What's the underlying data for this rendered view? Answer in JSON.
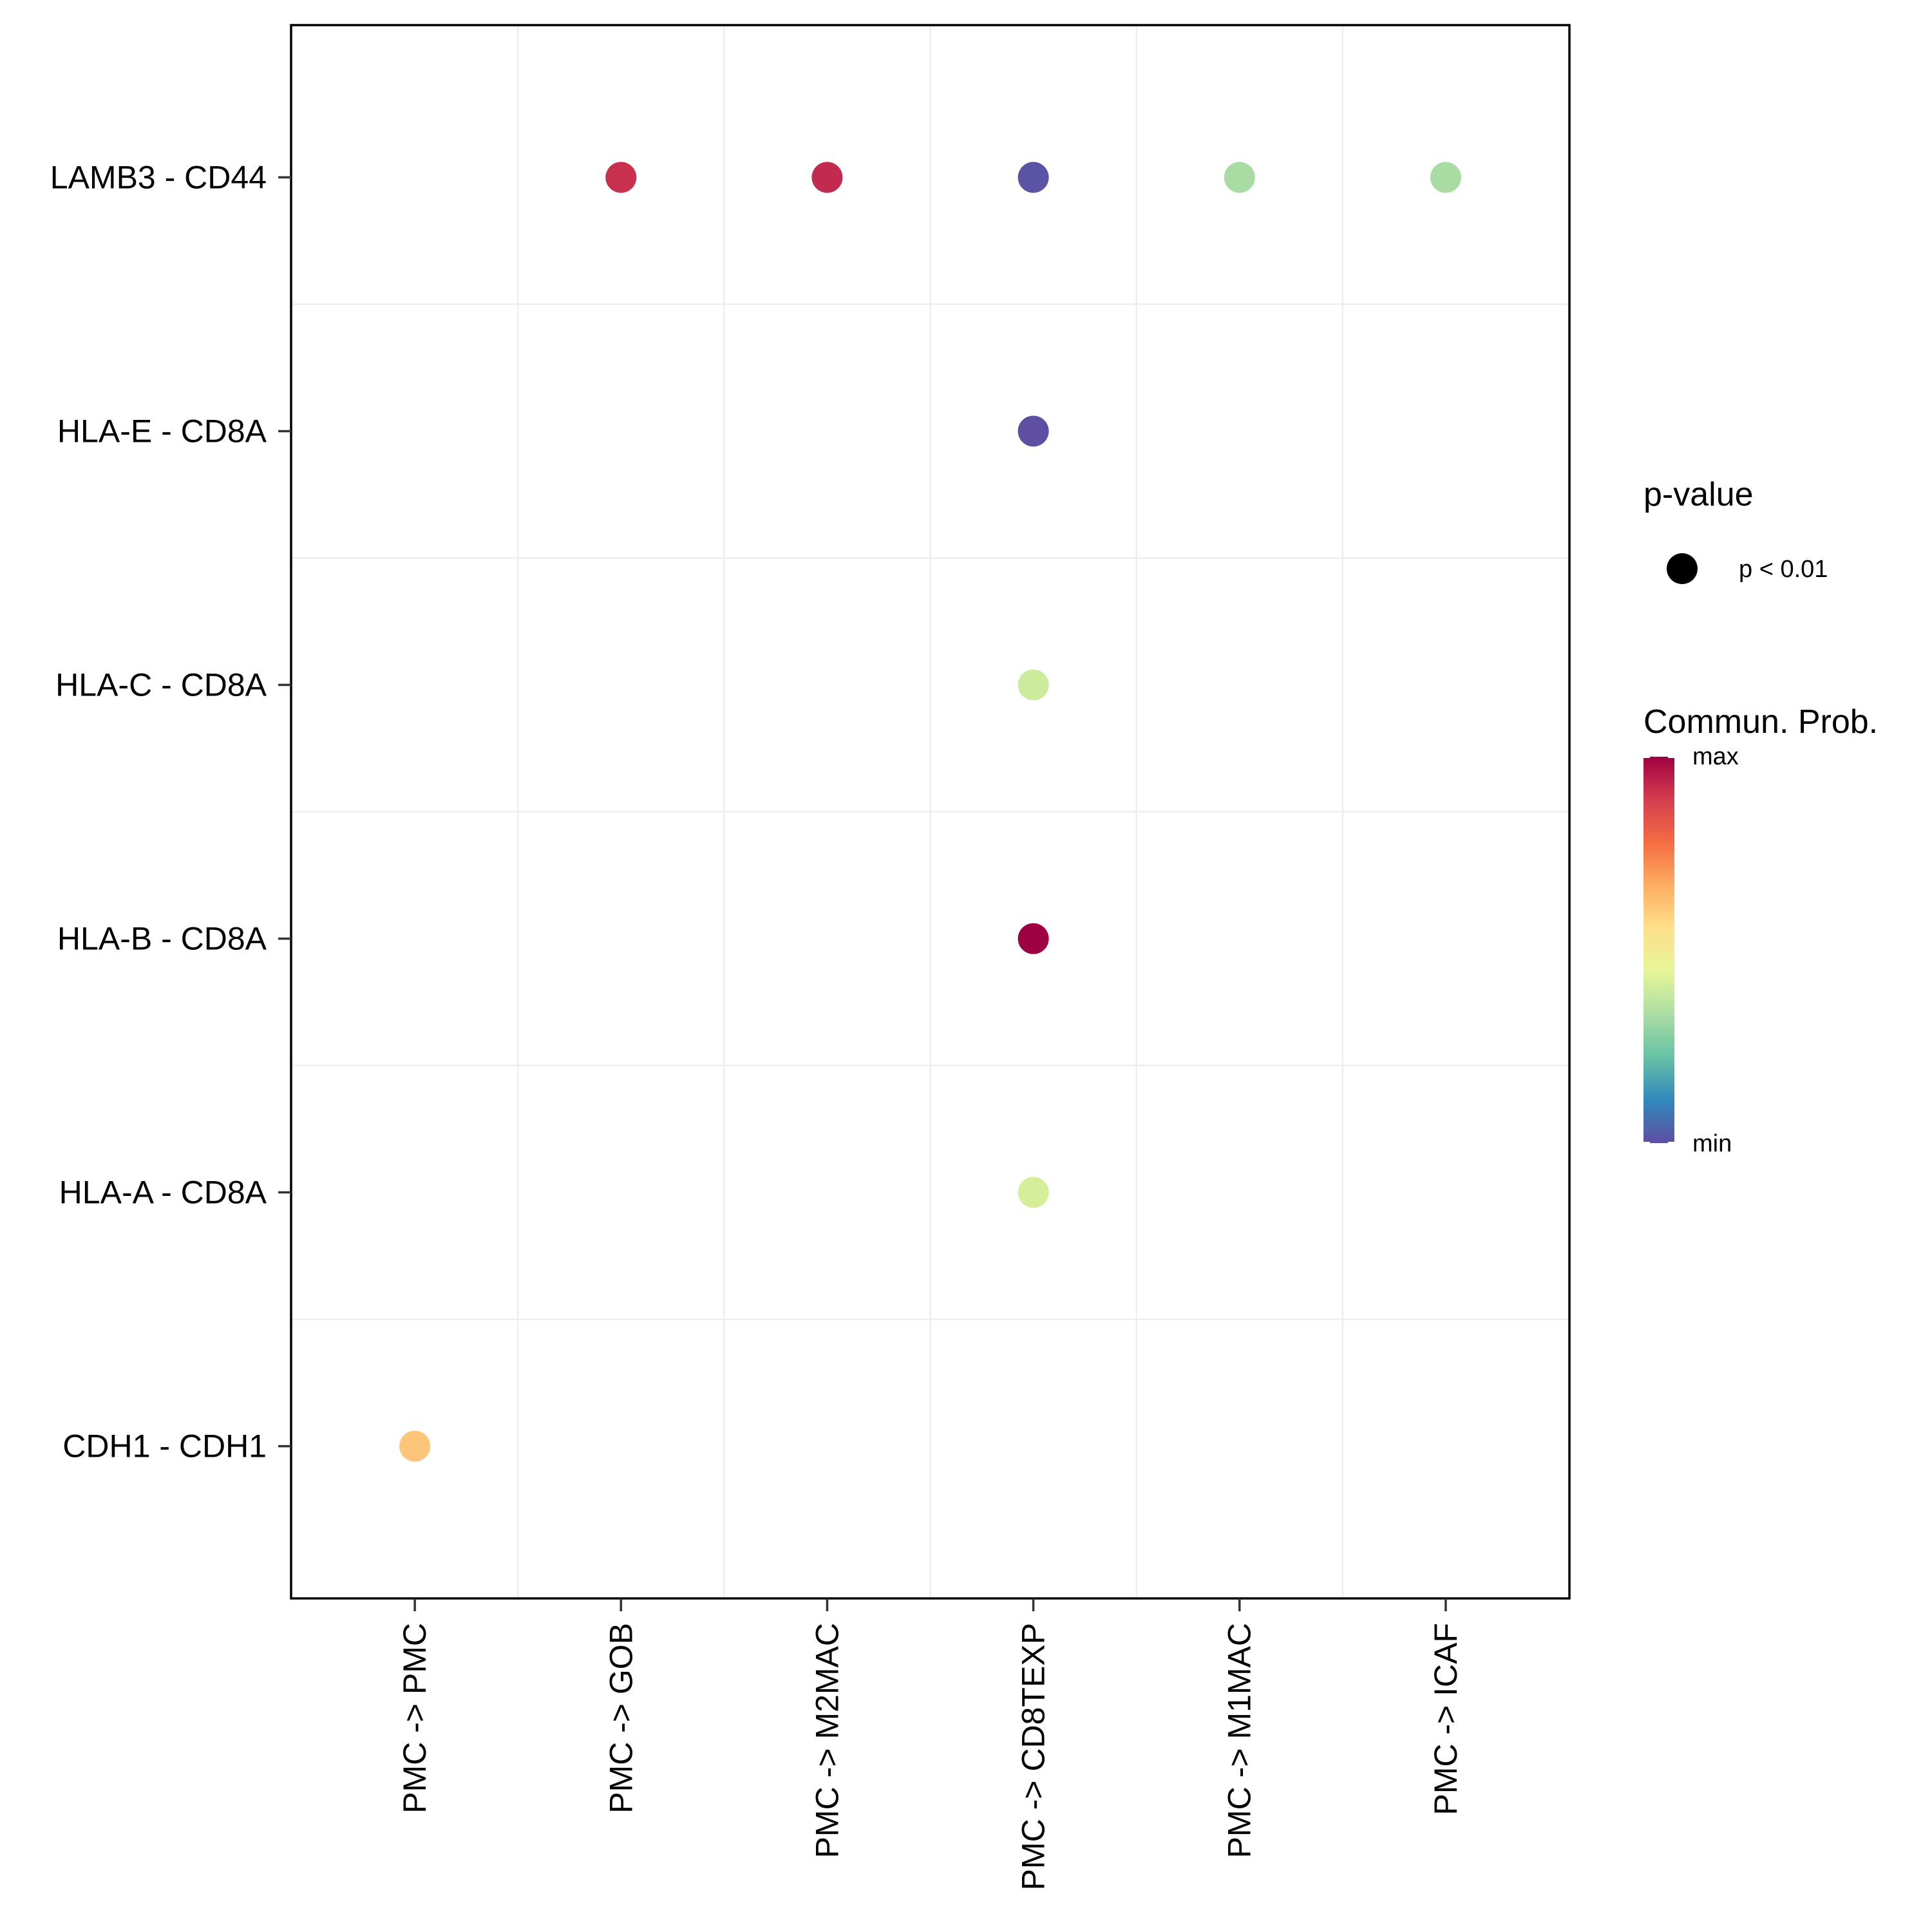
{
  "chart_data": {
    "type": "scatter",
    "x_categories": [
      "PMC -> PMC",
      "PMC -> GOB",
      "PMC -> M2MAC",
      "PMC -> CD8TEXP",
      "PMC -> M1MAC",
      "PMC -> ICAF"
    ],
    "y_categories": [
      "CDH1 - CDH1",
      "HLA-A - CD8A",
      "HLA-B - CD8A",
      "HLA-C - CD8A",
      "HLA-E - CD8A",
      "LAMB3 - CD44"
    ],
    "points": [
      {
        "x": "PMC -> GOB",
        "y": "LAMB3 - CD44",
        "prob": 0.88,
        "color": "#c8304e",
        "pvalue": "p < 0.01"
      },
      {
        "x": "PMC -> M2MAC",
        "y": "LAMB3 - CD44",
        "prob": 0.9,
        "color": "#c32a4f",
        "pvalue": "p < 0.01"
      },
      {
        "x": "PMC -> CD8TEXP",
        "y": "LAMB3 - CD44",
        "prob": 0.02,
        "color": "#5b54a4",
        "pvalue": "p < 0.01"
      },
      {
        "x": "PMC -> M1MAC",
        "y": "LAMB3 - CD44",
        "prob": 0.35,
        "color": "#a9dca3",
        "pvalue": "p < 0.01"
      },
      {
        "x": "PMC -> ICAF",
        "y": "LAMB3 - CD44",
        "prob": 0.35,
        "color": "#a9dca3",
        "pvalue": "p < 0.01"
      },
      {
        "x": "PMC -> CD8TEXP",
        "y": "HLA-E - CD8A",
        "prob": 0.0,
        "color": "#5e4fa2",
        "pvalue": "p < 0.01"
      },
      {
        "x": "PMC -> CD8TEXP",
        "y": "HLA-C - CD8A",
        "prob": 0.42,
        "color": "#cdeb9c",
        "pvalue": "p < 0.01"
      },
      {
        "x": "PMC -> CD8TEXP",
        "y": "HLA-B - CD8A",
        "prob": 1.0,
        "color": "#9e0142",
        "pvalue": "p < 0.01"
      },
      {
        "x": "PMC -> CD8TEXP",
        "y": "HLA-A - CD8A",
        "prob": 0.44,
        "color": "#d4ee9a",
        "pvalue": "p < 0.01"
      },
      {
        "x": "PMC -> PMC",
        "y": "CDH1 - CDH1",
        "prob": 0.62,
        "color": "#fdc57a",
        "pvalue": "p < 0.01"
      }
    ],
    "legend": {
      "pvalue_title": "p-value",
      "pvalue_label": "p < 0.01",
      "color_title": "Commun. Prob.",
      "color_max_label": "max",
      "color_min_label": "min",
      "color_scale": [
        "#5e4fa2",
        "#3288bd",
        "#66c2a5",
        "#abdda4",
        "#e6f598",
        "#fee08b",
        "#fdae61",
        "#f46d43",
        "#d53e4f",
        "#9e0142"
      ]
    },
    "grid": true,
    "title": "",
    "xlabel": "",
    "ylabel": ""
  }
}
